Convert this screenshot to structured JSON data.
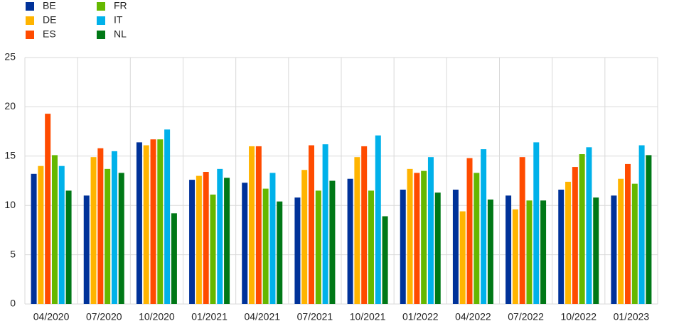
{
  "chart_data": {
    "type": "bar",
    "categories": [
      "04/2020",
      "07/2020",
      "10/2020",
      "01/2021",
      "04/2021",
      "07/2021",
      "10/2021",
      "01/2022",
      "04/2022",
      "07/2022",
      "10/2022",
      "01/2023"
    ],
    "series": [
      {
        "name": "BE",
        "color": "#003299",
        "values": [
          13.2,
          11.0,
          16.4,
          12.6,
          12.3,
          10.8,
          12.7,
          11.6,
          11.6,
          11.0,
          11.6,
          11.0
        ]
      },
      {
        "name": "DE",
        "color": "#ffb400",
        "values": [
          14.0,
          14.9,
          16.1,
          13.0,
          16.0,
          13.6,
          14.9,
          13.7,
          9.4,
          9.6,
          12.4,
          12.7
        ]
      },
      {
        "name": "ES",
        "color": "#ff4b00",
        "values": [
          19.3,
          15.8,
          16.7,
          13.4,
          16.0,
          16.1,
          16.0,
          13.3,
          14.8,
          14.9,
          13.9,
          14.2
        ]
      },
      {
        "name": "FR",
        "color": "#65b800",
        "values": [
          15.1,
          13.7,
          16.7,
          11.1,
          11.7,
          11.5,
          11.5,
          13.5,
          13.3,
          10.5,
          15.2,
          12.2
        ]
      },
      {
        "name": "IT",
        "color": "#00b1ea",
        "values": [
          14.0,
          15.5,
          17.7,
          13.7,
          13.3,
          16.2,
          17.1,
          14.9,
          15.7,
          16.4,
          15.9,
          16.1
        ]
      },
      {
        "name": "NL",
        "color": "#007816",
        "values": [
          11.5,
          13.3,
          9.2,
          12.8,
          10.4,
          12.5,
          8.9,
          11.3,
          10.6,
          10.5,
          10.8,
          15.1
        ]
      }
    ],
    "ylim": [
      0,
      25
    ],
    "yticks": [
      0,
      5,
      10,
      15,
      20,
      25
    ],
    "grid": true,
    "legend": "top-left"
  }
}
